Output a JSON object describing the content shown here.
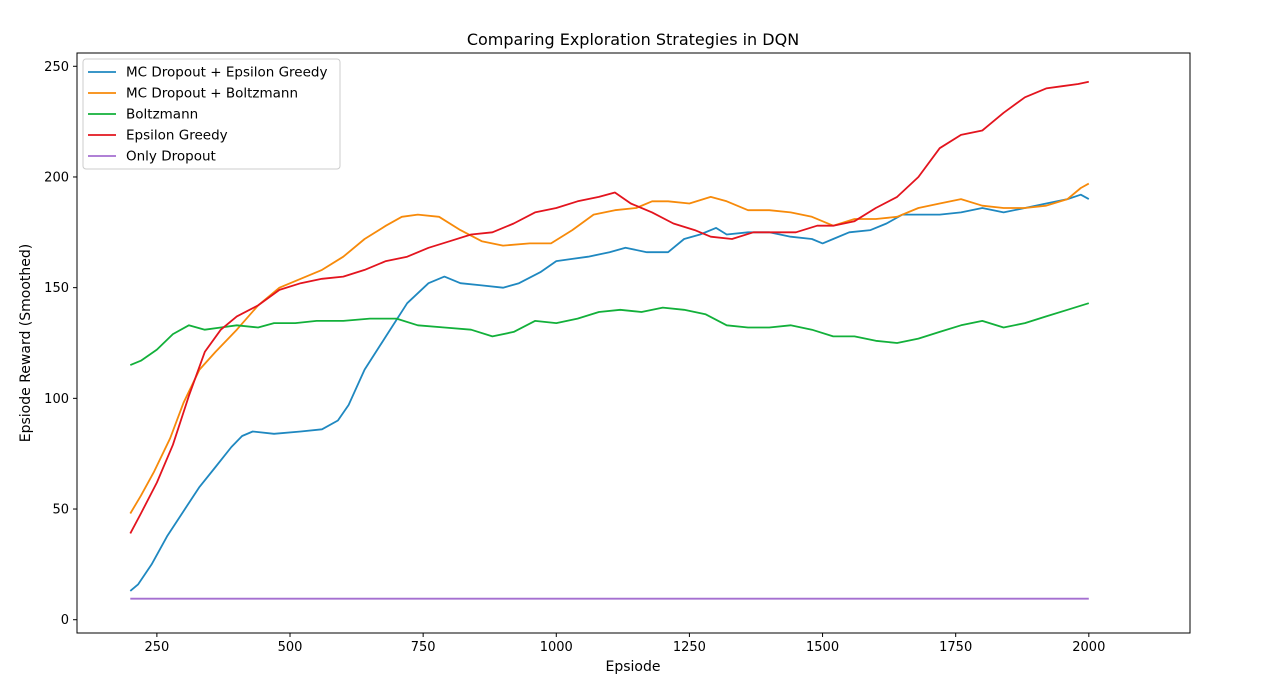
{
  "chart_data": {
    "type": "line",
    "title": "Comparing Exploration Strategies in DQN",
    "xlabel": "Epsiode",
    "ylabel": "Epsiode Reward (Smoothed)",
    "xlim": [
      100,
      2190
    ],
    "ylim": [
      -6,
      256
    ],
    "xticks": [
      250,
      500,
      750,
      1000,
      1250,
      1500,
      1750,
      2000
    ],
    "yticks": [
      0,
      50,
      100,
      150,
      200,
      250
    ],
    "grid": false,
    "legend_position": "top-left",
    "series": [
      {
        "name": "MC Dropout + Epsilon Greedy",
        "color": "#1f88c0",
        "points": [
          [
            200,
            13
          ],
          [
            215,
            16
          ],
          [
            240,
            25
          ],
          [
            270,
            38
          ],
          [
            300,
            49
          ],
          [
            330,
            60
          ],
          [
            360,
            69
          ],
          [
            390,
            78
          ],
          [
            410,
            83
          ],
          [
            430,
            85
          ],
          [
            470,
            84
          ],
          [
            520,
            85
          ],
          [
            560,
            86
          ],
          [
            590,
            90
          ],
          [
            610,
            97
          ],
          [
            640,
            113
          ],
          [
            680,
            128
          ],
          [
            720,
            143
          ],
          [
            760,
            152
          ],
          [
            790,
            155
          ],
          [
            820,
            152
          ],
          [
            860,
            151
          ],
          [
            900,
            150
          ],
          [
            930,
            152
          ],
          [
            970,
            157
          ],
          [
            1000,
            162
          ],
          [
            1030,
            163
          ],
          [
            1060,
            164
          ],
          [
            1100,
            166
          ],
          [
            1130,
            168
          ],
          [
            1170,
            166
          ],
          [
            1210,
            166
          ],
          [
            1240,
            172
          ],
          [
            1270,
            174
          ],
          [
            1300,
            177
          ],
          [
            1320,
            174
          ],
          [
            1360,
            175
          ],
          [
            1400,
            175
          ],
          [
            1440,
            173
          ],
          [
            1480,
            172
          ],
          [
            1500,
            170
          ],
          [
            1520,
            172
          ],
          [
            1550,
            175
          ],
          [
            1590,
            176
          ],
          [
            1620,
            179
          ],
          [
            1650,
            183
          ],
          [
            1690,
            183
          ],
          [
            1720,
            183
          ],
          [
            1760,
            184
          ],
          [
            1800,
            186
          ],
          [
            1840,
            184
          ],
          [
            1880,
            186
          ],
          [
            1920,
            188
          ],
          [
            1960,
            190
          ],
          [
            1985,
            192
          ],
          [
            2000,
            190
          ]
        ]
      },
      {
        "name": "MC Dropout + Boltzmann",
        "color": "#f78a0a",
        "points": [
          [
            200,
            48
          ],
          [
            220,
            56
          ],
          [
            245,
            67
          ],
          [
            275,
            82
          ],
          [
            300,
            98
          ],
          [
            330,
            113
          ],
          [
            360,
            121
          ],
          [
            400,
            131
          ],
          [
            440,
            142
          ],
          [
            480,
            150
          ],
          [
            520,
            154
          ],
          [
            560,
            158
          ],
          [
            600,
            164
          ],
          [
            640,
            172
          ],
          [
            680,
            178
          ],
          [
            710,
            182
          ],
          [
            740,
            183
          ],
          [
            780,
            182
          ],
          [
            820,
            176
          ],
          [
            860,
            171
          ],
          [
            900,
            169
          ],
          [
            950,
            170
          ],
          [
            990,
            170
          ],
          [
            1030,
            176
          ],
          [
            1070,
            183
          ],
          [
            1110,
            185
          ],
          [
            1150,
            186
          ],
          [
            1180,
            189
          ],
          [
            1210,
            189
          ],
          [
            1250,
            188
          ],
          [
            1290,
            191
          ],
          [
            1320,
            189
          ],
          [
            1360,
            185
          ],
          [
            1400,
            185
          ],
          [
            1440,
            184
          ],
          [
            1480,
            182
          ],
          [
            1520,
            178
          ],
          [
            1560,
            181
          ],
          [
            1600,
            181
          ],
          [
            1640,
            182
          ],
          [
            1680,
            186
          ],
          [
            1720,
            188
          ],
          [
            1760,
            190
          ],
          [
            1800,
            187
          ],
          [
            1840,
            186
          ],
          [
            1880,
            186
          ],
          [
            1920,
            187
          ],
          [
            1960,
            190
          ],
          [
            1985,
            195
          ],
          [
            2000,
            197
          ]
        ]
      },
      {
        "name": "Boltzmann",
        "color": "#12b03a",
        "points": [
          [
            200,
            115
          ],
          [
            220,
            117
          ],
          [
            250,
            122
          ],
          [
            280,
            129
          ],
          [
            310,
            133
          ],
          [
            340,
            131
          ],
          [
            370,
            132
          ],
          [
            400,
            133
          ],
          [
            440,
            132
          ],
          [
            470,
            134
          ],
          [
            510,
            134
          ],
          [
            550,
            135
          ],
          [
            600,
            135
          ],
          [
            650,
            136
          ],
          [
            700,
            136
          ],
          [
            740,
            133
          ],
          [
            790,
            132
          ],
          [
            840,
            131
          ],
          [
            880,
            128
          ],
          [
            920,
            130
          ],
          [
            960,
            135
          ],
          [
            1000,
            134
          ],
          [
            1040,
            136
          ],
          [
            1080,
            139
          ],
          [
            1120,
            140
          ],
          [
            1160,
            139
          ],
          [
            1200,
            141
          ],
          [
            1240,
            140
          ],
          [
            1280,
            138
          ],
          [
            1320,
            133
          ],
          [
            1360,
            132
          ],
          [
            1400,
            132
          ],
          [
            1440,
            133
          ],
          [
            1480,
            131
          ],
          [
            1520,
            128
          ],
          [
            1560,
            128
          ],
          [
            1600,
            126
          ],
          [
            1640,
            125
          ],
          [
            1680,
            127
          ],
          [
            1720,
            130
          ],
          [
            1760,
            133
          ],
          [
            1800,
            135
          ],
          [
            1840,
            132
          ],
          [
            1880,
            134
          ],
          [
            1920,
            137
          ],
          [
            1960,
            140
          ],
          [
            2000,
            143
          ]
        ]
      },
      {
        "name": "Epsilon Greedy",
        "color": "#e3141e",
        "points": [
          [
            200,
            39
          ],
          [
            220,
            48
          ],
          [
            250,
            62
          ],
          [
            280,
            79
          ],
          [
            310,
            101
          ],
          [
            340,
            121
          ],
          [
            370,
            131
          ],
          [
            400,
            137
          ],
          [
            440,
            142
          ],
          [
            480,
            149
          ],
          [
            520,
            152
          ],
          [
            560,
            154
          ],
          [
            600,
            155
          ],
          [
            640,
            158
          ],
          [
            680,
            162
          ],
          [
            720,
            164
          ],
          [
            760,
            168
          ],
          [
            800,
            171
          ],
          [
            840,
            174
          ],
          [
            880,
            175
          ],
          [
            920,
            179
          ],
          [
            960,
            184
          ],
          [
            1000,
            186
          ],
          [
            1040,
            189
          ],
          [
            1080,
            191
          ],
          [
            1110,
            193
          ],
          [
            1140,
            188
          ],
          [
            1180,
            184
          ],
          [
            1220,
            179
          ],
          [
            1260,
            176
          ],
          [
            1290,
            173
          ],
          [
            1330,
            172
          ],
          [
            1370,
            175
          ],
          [
            1410,
            175
          ],
          [
            1450,
            175
          ],
          [
            1490,
            178
          ],
          [
            1520,
            178
          ],
          [
            1560,
            180
          ],
          [
            1600,
            186
          ],
          [
            1640,
            191
          ],
          [
            1680,
            200
          ],
          [
            1720,
            213
          ],
          [
            1760,
            219
          ],
          [
            1800,
            221
          ],
          [
            1840,
            229
          ],
          [
            1880,
            236
          ],
          [
            1920,
            240
          ],
          [
            1950,
            241
          ],
          [
            1980,
            242
          ],
          [
            2000,
            243
          ]
        ]
      },
      {
        "name": "Only Dropout",
        "color": "#a56fd0",
        "points": [
          [
            200,
            9.5
          ],
          [
            2000,
            9.5
          ]
        ]
      }
    ]
  }
}
